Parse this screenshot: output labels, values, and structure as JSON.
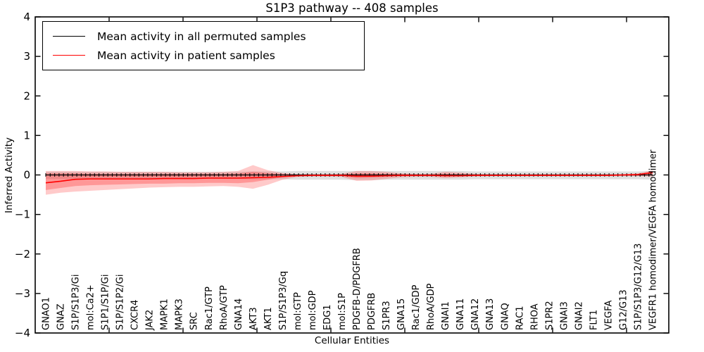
{
  "chart_data": {
    "type": "line",
    "title": "S1P3 pathway -- 408 samples",
    "xlabel": "Cellular Entities",
    "ylabel": "Inferred Activity",
    "ylim": [
      -4,
      4
    ],
    "yticks": [
      -4,
      -3,
      -2,
      -1,
      0,
      1,
      2,
      3,
      4
    ],
    "grid": false,
    "legend": {
      "position": "upper left",
      "entries": [
        {
          "label": "Mean activity in all permuted samples",
          "color": "#000000"
        },
        {
          "label": "Mean activity in patient samples",
          "color": "#ff0000"
        }
      ]
    },
    "colors": {
      "frame": "#000000",
      "background": "#ffffff",
      "permuted_line": "#000000",
      "patient_line": "#ff0000",
      "permuted_band": "#999999",
      "patient_band": "#ff2a2a"
    },
    "categories": [
      "GNAO1",
      "GNAZ",
      "S1P/S1P3/Gi",
      "mol:Ca2+",
      "S1P1/S1P/Gi",
      "S1P/S1P2/Gi",
      "CXCR4",
      "JAK2",
      "MAPK1",
      "MAPK3",
      "SRC",
      "Rac1/GTP",
      "RhoA/GTP",
      "GNA14",
      "AKT3",
      "AKT1",
      "S1P/S1P3/Gq",
      "mol:GTP",
      "mol:GDP",
      "EDG1",
      "mol:S1P",
      "PDGFB-D/PDGFRB",
      "PDGFRB",
      "S1PR3",
      "GNA15",
      "Rac1/GDP",
      "RhoA/GDP",
      "GNAI1",
      "GNA11",
      "GNA12",
      "GNA13",
      "GNAQ",
      "RAC1",
      "RHOA",
      "S1PR2",
      "GNAI3",
      "GNAI2",
      "FLT1",
      "VEGFA",
      "G12/G13",
      "S1P/S1P3/G12/G13",
      "VEGFR1 homodimer/VEGFA homodimer"
    ],
    "series": [
      {
        "name": "Mean activity in all permuted samples",
        "color": "#000000",
        "values": [
          0,
          0,
          0,
          0,
          0,
          0,
          0,
          0,
          0,
          0,
          0,
          0,
          0,
          0,
          0,
          0,
          0,
          0,
          0,
          0,
          0,
          0,
          0,
          0,
          0,
          0,
          0,
          0,
          0,
          0,
          0,
          0,
          0,
          0,
          0,
          0,
          0,
          0,
          0,
          0,
          0,
          0
        ]
      },
      {
        "name": "Mean activity in patient samples",
        "color": "#ff0000",
        "values": [
          -0.2,
          -0.16,
          -0.11,
          -0.1,
          -0.1,
          -0.1,
          -0.1,
          -0.1,
          -0.09,
          -0.09,
          -0.09,
          -0.08,
          -0.08,
          -0.08,
          -0.07,
          -0.06,
          -0.04,
          -0.02,
          -0.01,
          -0.01,
          -0.01,
          -0.03,
          -0.03,
          -0.02,
          -0.01,
          -0.01,
          -0.01,
          -0.02,
          -0.02,
          -0.01,
          -0.01,
          -0.01,
          -0.01,
          -0.01,
          -0.01,
          -0.01,
          -0.01,
          -0.01,
          -0.01,
          0.0,
          0.01,
          0.06
        ]
      }
    ],
    "bands": [
      {
        "name": "permuted-samples-range",
        "color": "#999999",
        "opacity": 0.3,
        "upper": [
          0.08,
          0.08,
          0.08,
          0.08,
          0.08,
          0.08,
          0.08,
          0.08,
          0.08,
          0.08,
          0.08,
          0.08,
          0.08,
          0.08,
          0.09,
          0.09,
          0.09,
          0.1,
          0.1,
          0.1,
          0.1,
          0.1,
          0.1,
          0.1,
          0.1,
          0.1,
          0.1,
          0.1,
          0.1,
          0.09,
          0.09,
          0.09,
          0.09,
          0.09,
          0.09,
          0.09,
          0.09,
          0.09,
          0.09,
          0.09,
          0.09,
          0.1
        ],
        "lower": [
          -0.1,
          -0.1,
          -0.1,
          -0.1,
          -0.1,
          -0.1,
          -0.1,
          -0.1,
          -0.1,
          -0.1,
          -0.1,
          -0.1,
          -0.1,
          -0.1,
          -0.11,
          -0.11,
          -0.11,
          -0.12,
          -0.12,
          -0.12,
          -0.12,
          -0.13,
          -0.13,
          -0.12,
          -0.12,
          -0.12,
          -0.12,
          -0.12,
          -0.12,
          -0.11,
          -0.11,
          -0.11,
          -0.11,
          -0.11,
          -0.11,
          -0.11,
          -0.11,
          -0.11,
          -0.11,
          -0.11,
          -0.11,
          -0.12
        ]
      },
      {
        "name": "patient-samples-outer-range",
        "color": "#ff2a2a",
        "opacity": 0.25,
        "upper": [
          0.1,
          0.1,
          0.1,
          0.09,
          0.09,
          0.08,
          0.08,
          0.08,
          0.08,
          0.07,
          0.07,
          0.07,
          0.08,
          0.1,
          0.25,
          0.12,
          0.05,
          0.02,
          0.02,
          0.02,
          0.03,
          0.1,
          0.1,
          0.08,
          0.04,
          0.03,
          0.03,
          0.08,
          0.06,
          0.03,
          0.02,
          0.02,
          0.02,
          0.02,
          0.02,
          0.02,
          0.02,
          0.02,
          0.02,
          0.02,
          0.04,
          0.12
        ],
        "lower": [
          -0.5,
          -0.45,
          -0.42,
          -0.4,
          -0.38,
          -0.36,
          -0.34,
          -0.32,
          -0.31,
          -0.3,
          -0.3,
          -0.29,
          -0.28,
          -0.3,
          -0.35,
          -0.25,
          -0.12,
          -0.05,
          -0.04,
          -0.04,
          -0.05,
          -0.15,
          -0.14,
          -0.1,
          -0.06,
          -0.05,
          -0.05,
          -0.08,
          -0.06,
          -0.04,
          -0.03,
          -0.03,
          -0.03,
          -0.03,
          -0.03,
          -0.03,
          -0.03,
          -0.03,
          -0.03,
          -0.03,
          -0.03,
          -0.04
        ]
      },
      {
        "name": "patient-samples-inner-range",
        "color": "#ff2a2a",
        "opacity": 0.32,
        "upper": [
          0.04,
          0.04,
          0.04,
          0.03,
          0.03,
          0.03,
          0.03,
          0.03,
          0.03,
          0.03,
          0.03,
          0.03,
          0.03,
          0.04,
          0.08,
          0.05,
          0.02,
          0.01,
          0.01,
          0.01,
          0.01,
          0.04,
          0.04,
          0.03,
          0.02,
          0.01,
          0.01,
          0.03,
          0.02,
          0.01,
          0.01,
          0.01,
          0.01,
          0.01,
          0.01,
          0.01,
          0.01,
          0.01,
          0.01,
          0.01,
          0.02,
          0.08
        ],
        "lower": [
          -0.38,
          -0.33,
          -0.28,
          -0.26,
          -0.25,
          -0.24,
          -0.23,
          -0.22,
          -0.22,
          -0.21,
          -0.21,
          -0.2,
          -0.2,
          -0.21,
          -0.18,
          -0.12,
          -0.06,
          -0.03,
          -0.02,
          -0.02,
          -0.03,
          -0.08,
          -0.07,
          -0.05,
          -0.03,
          -0.02,
          -0.02,
          -0.04,
          -0.03,
          -0.02,
          -0.02,
          -0.02,
          -0.02,
          -0.02,
          -0.02,
          -0.02,
          -0.02,
          -0.02,
          -0.02,
          -0.02,
          -0.02,
          -0.01
        ]
      }
    ]
  }
}
